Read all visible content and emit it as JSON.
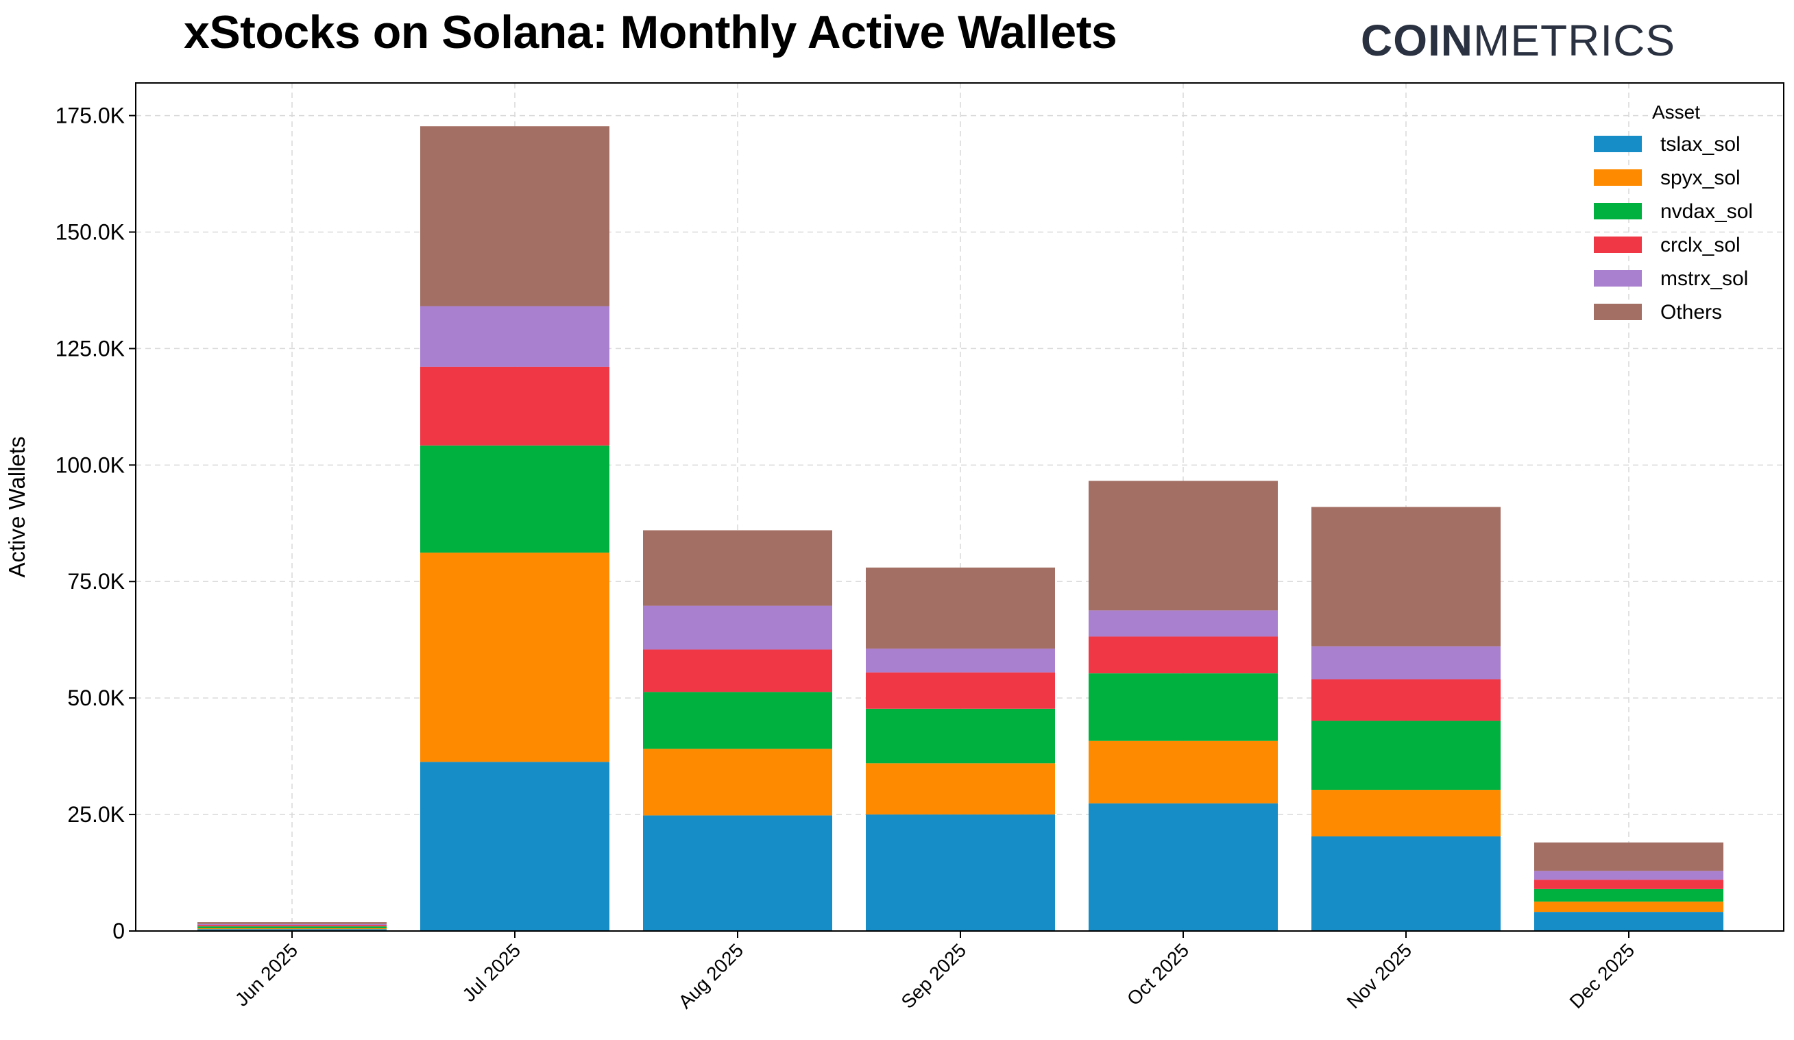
{
  "title": "xStocks on Solana: Monthly Active Wallets",
  "logo": {
    "strong": "COIN",
    "light": "METRICS"
  },
  "chart_data": {
    "type": "bar",
    "stacked": true,
    "title": "xStocks on Solana: Monthly Active Wallets",
    "xlabel": "",
    "ylabel": "Active Wallets",
    "ylim": [
      0,
      182000
    ],
    "yticks": [
      0,
      25000,
      50000,
      75000,
      100000,
      125000,
      150000,
      175000
    ],
    "ytick_labels": [
      "0",
      "25.0K",
      "50.0K",
      "75.0K",
      "100.0K",
      "125.0K",
      "150.0K",
      "175.0K"
    ],
    "grid": true,
    "legend_title": "Asset",
    "legend_position": "top-right",
    "categories": [
      "Jun 2025",
      "Jul 2025",
      "Aug 2025",
      "Sep 2025",
      "Oct 2025",
      "Nov 2025",
      "Dec 2025"
    ],
    "series": [
      {
        "name": "tslax_sol",
        "color": "#168dc6",
        "values": [
          400,
          36300,
          24800,
          25000,
          27400,
          20300,
          4100
        ]
      },
      {
        "name": "spyx_sol",
        "color": "#fe8a00",
        "values": [
          200,
          44900,
          14300,
          11000,
          13400,
          10000,
          2200
        ]
      },
      {
        "name": "nvdax_sol",
        "color": "#00b140",
        "values": [
          400,
          23000,
          12200,
          11700,
          14500,
          14800,
          2700
        ]
      },
      {
        "name": "crclx_sol",
        "color": "#f03745",
        "values": [
          300,
          16900,
          9100,
          7800,
          7900,
          8900,
          2000
        ]
      },
      {
        "name": "mstrx_sol",
        "color": "#a97fcf",
        "values": [
          200,
          13000,
          9400,
          5100,
          5600,
          7100,
          1900
        ]
      },
      {
        "name": "Others",
        "color": "#a36f64",
        "values": [
          400,
          38600,
          16200,
          17400,
          27800,
          29900,
          6100
        ]
      }
    ]
  }
}
